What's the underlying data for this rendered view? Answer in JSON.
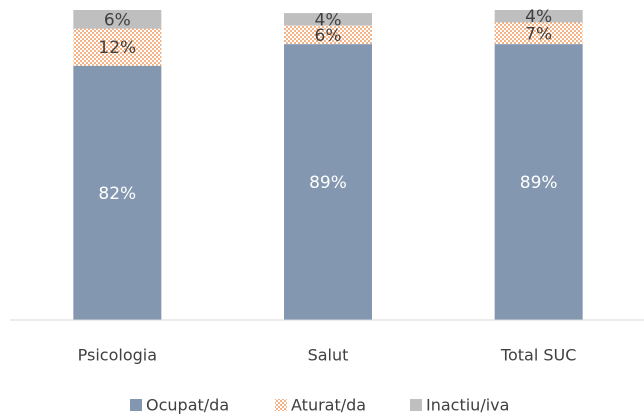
{
  "chart_data": {
    "type": "stacked_bar",
    "categories": [
      "Psicologia",
      "Salut",
      "Total SUC"
    ],
    "series": [
      {
        "name": "Ocupat/da",
        "color": "#8497b0",
        "values": [
          82,
          89,
          89
        ],
        "value_labels": [
          "82%",
          "89%",
          "89%"
        ]
      },
      {
        "name": "Aturat/da",
        "color": "#ed7d31",
        "values": [
          12,
          6,
          7
        ],
        "value_labels": [
          "12%",
          "6%",
          "7%"
        ]
      },
      {
        "name": "Inactiu/iva",
        "color": "#bfbfbf",
        "values": [
          6,
          4,
          4
        ],
        "value_labels": [
          "6%",
          "4%",
          "4%"
        ]
      }
    ],
    "ylim": [
      0,
      100
    ],
    "legend": "bottom"
  }
}
